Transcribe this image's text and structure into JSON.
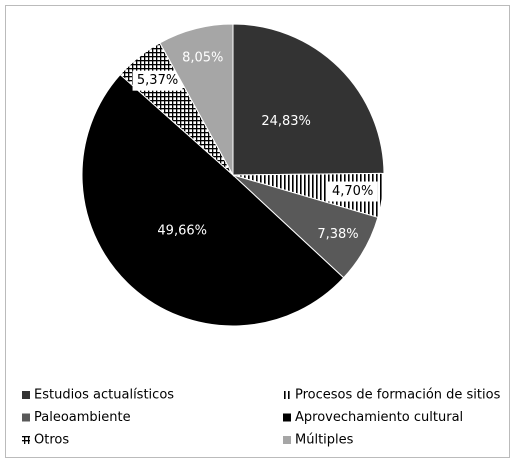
{
  "chart_data": {
    "type": "pie",
    "categories": [
      "Estudios actualísticos",
      "Procesos de formación de sitios",
      "Paleoambiente",
      "Aprovechamiento cultural",
      "Otros",
      "Múltiples"
    ],
    "values": [
      24.83,
      4.7,
      7.38,
      49.66,
      5.37,
      8.05
    ],
    "value_labels": [
      "24,83%",
      "4,70%",
      "7,38%",
      "49,66%",
      "5,37%",
      "8,05%"
    ],
    "colors": [
      "#333333",
      "#ffffff",
      "#595959",
      "#000000",
      "#ffffff",
      "#a6a6a6"
    ],
    "patterns": [
      null,
      "vertical-lines",
      null,
      null,
      "grid",
      null
    ],
    "legend": "bottom"
  }
}
